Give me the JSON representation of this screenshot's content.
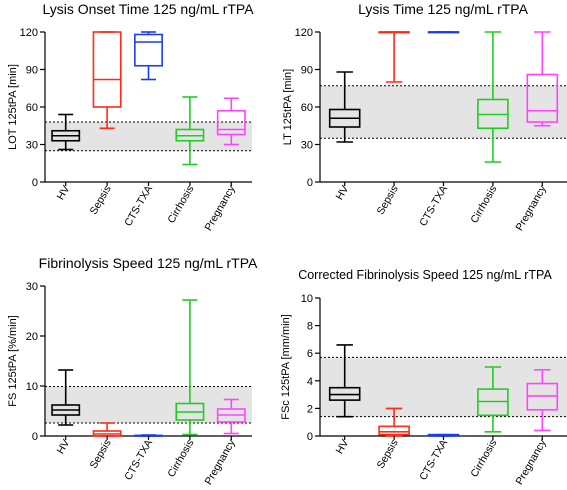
{
  "colors": {
    "HV": "#000000",
    "Sepsis": "#ff2a1a",
    "CTS-TXA": "#1a3ee6",
    "Cirrhosis": "#22cc22",
    "Pregnancy": "#ff44ff",
    "reference_band": "#e4e4e4"
  },
  "chart_data": [
    {
      "type": "box",
      "title": "Lysis Onset Time 125 ng/mL rTPA",
      "ylabel": "LOT 125tPA [min]",
      "ylim": [
        0,
        120
      ],
      "yticks": [
        0,
        30,
        60,
        90,
        120
      ],
      "categories": [
        "HV",
        "Sepsis",
        "CTS-TXA",
        "Cirrhosis",
        "Pregnancy"
      ],
      "reference_range": [
        25,
        48
      ],
      "boxes": [
        {
          "category": "HV",
          "min": 26,
          "q1": 33,
          "median": 37,
          "q3": 41,
          "max": 54
        },
        {
          "category": "Sepsis",
          "min": 43,
          "q1": 60,
          "median": 82,
          "q3": 120,
          "max": 120
        },
        {
          "category": "CTS-TXA",
          "min": 82,
          "q1": 93,
          "median": 112,
          "q3": 118,
          "max": 120
        },
        {
          "category": "Cirrhosis",
          "min": 14,
          "q1": 33,
          "median": 37,
          "q3": 42,
          "max": 68
        },
        {
          "category": "Pregnancy",
          "min": 30,
          "q1": 38,
          "median": 42,
          "q3": 57,
          "max": 67
        }
      ]
    },
    {
      "type": "box",
      "title": "Lysis Time 125 ng/mL rTPA",
      "ylabel": "LT 125tPA [min]",
      "ylim": [
        0,
        120
      ],
      "yticks": [
        0,
        30,
        60,
        90,
        120
      ],
      "categories": [
        "HV",
        "Sepsis",
        "CTS-TXA",
        "Cirrhosis",
        "Pregnancy"
      ],
      "reference_range": [
        35,
        77
      ],
      "boxes": [
        {
          "category": "HV",
          "min": 32,
          "q1": 44,
          "median": 51,
          "q3": 58,
          "max": 88
        },
        {
          "category": "Sepsis",
          "min": 80,
          "q1": 120,
          "median": 120,
          "q3": 120,
          "max": 120
        },
        {
          "category": "CTS-TXA",
          "min": 120,
          "q1": 120,
          "median": 120,
          "q3": 120,
          "max": 120
        },
        {
          "category": "Cirrhosis",
          "min": 16,
          "q1": 43,
          "median": 54,
          "q3": 66,
          "max": 120
        },
        {
          "category": "Pregnancy",
          "min": 45,
          "q1": 48,
          "median": 57,
          "q3": 86,
          "max": 120
        }
      ]
    },
    {
      "type": "box",
      "title": "Fibrinolysis Speed 125 ng/mL rTPA",
      "ylabel": "FS 125tPA [%/min]",
      "ylim": [
        0,
        30
      ],
      "yticks": [
        0,
        10,
        20,
        30
      ],
      "categories": [
        "HV",
        "Sepsis",
        "CTS-TXA",
        "Cirrhosis",
        "Pregnancy"
      ],
      "reference_range": [
        2.6,
        9.9
      ],
      "boxes": [
        {
          "category": "HV",
          "min": 2.2,
          "q1": 4.2,
          "median": 5.2,
          "q3": 6.2,
          "max": 13.2
        },
        {
          "category": "Sepsis",
          "min": 0,
          "q1": 0,
          "median": 0.4,
          "q3": 1.0,
          "max": 2.6
        },
        {
          "category": "CTS-TXA",
          "min": 0,
          "q1": 0,
          "median": 0.1,
          "q3": 0.1,
          "max": 0.2
        },
        {
          "category": "Cirrhosis",
          "min": 0.3,
          "q1": 3.2,
          "median": 4.8,
          "q3": 6.5,
          "max": 27.2
        },
        {
          "category": "Pregnancy",
          "min": 0.5,
          "q1": 2.8,
          "median": 4.2,
          "q3": 5.4,
          "max": 7.3
        }
      ]
    },
    {
      "type": "box",
      "title": "Corrected Fibrinolysis Speed 125 ng/mL rTPA",
      "ylabel": "FSc 125tPA [mm/min]",
      "ylim": [
        0,
        10
      ],
      "yticks": [
        0,
        2,
        4,
        6,
        8,
        10
      ],
      "categories": [
        "HV",
        "Sepsis",
        "CTS-TXA",
        "Cirrhosis",
        "Pregnancy"
      ],
      "reference_range": [
        1.4,
        5.7
      ],
      "boxes": [
        {
          "category": "HV",
          "min": 1.4,
          "q1": 2.6,
          "median": 3.0,
          "q3": 3.5,
          "max": 6.6
        },
        {
          "category": "Sepsis",
          "min": 0,
          "q1": 0.1,
          "median": 0.3,
          "q3": 0.7,
          "max": 2.0
        },
        {
          "category": "CTS-TXA",
          "min": 0,
          "q1": 0,
          "median": 0.05,
          "q3": 0.1,
          "max": 0.1
        },
        {
          "category": "Cirrhosis",
          "min": 0.3,
          "q1": 1.5,
          "median": 2.5,
          "q3": 3.4,
          "max": 5.0
        },
        {
          "category": "Pregnancy",
          "min": 0.4,
          "q1": 1.9,
          "median": 2.9,
          "q3": 3.8,
          "max": 4.8
        }
      ]
    }
  ]
}
